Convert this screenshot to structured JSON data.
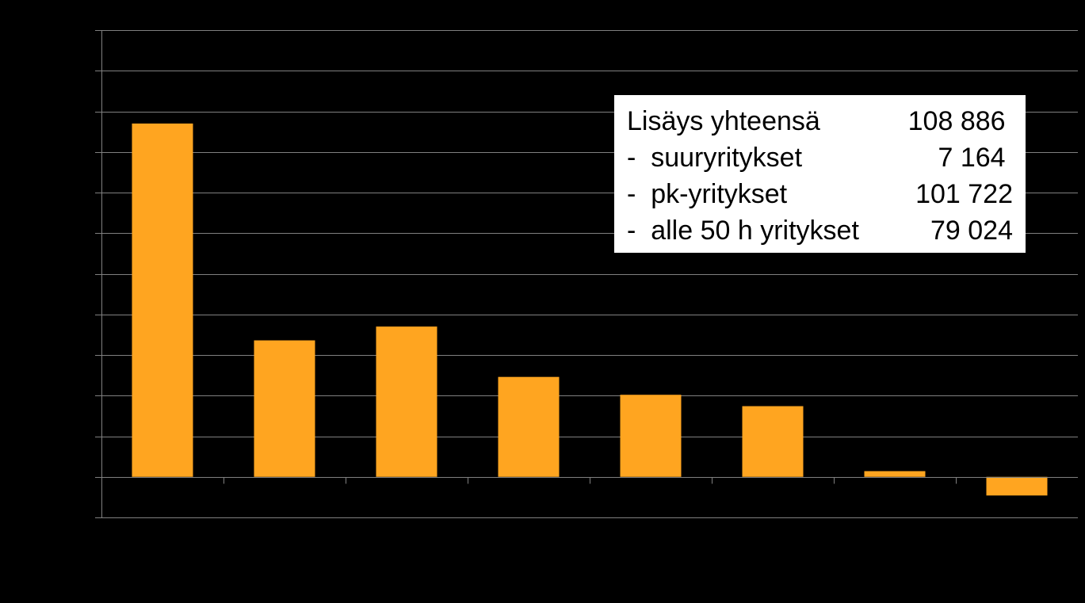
{
  "chart_data": {
    "type": "bar",
    "categories": [
      "",
      "",
      "",
      "",
      "",
      "",
      "",
      ""
    ],
    "values": [
      43500,
      16800,
      18500,
      12300,
      10100,
      8700,
      700,
      -2300
    ],
    "ylim": [
      -5000,
      55000
    ],
    "ytick_step": 5000,
    "grid": true,
    "bar_color": "#FFA520",
    "grid_color": "#808080",
    "background": "#000000",
    "title": "",
    "xlabel": "",
    "ylabel": ""
  },
  "infobox": {
    "rows": [
      {
        "label": "Lisäys yhteensä",
        "value": "108 886 "
      },
      {
        "label": "-  suuryritykset",
        "value": "7 164 "
      },
      {
        "label": "-  pk-yritykset",
        "value": "101 722"
      },
      {
        "label": "-  alle 50 h yritykset",
        "value": "79 024"
      }
    ]
  }
}
